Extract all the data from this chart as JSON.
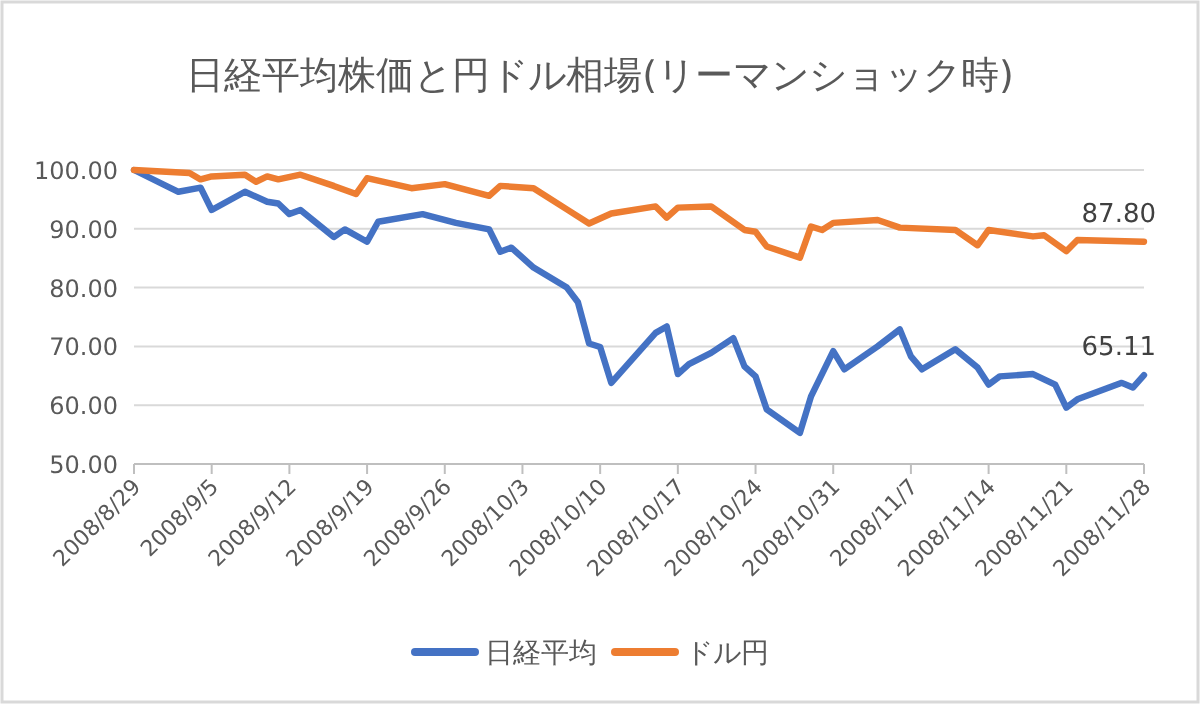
{
  "chart_data": {
    "type": "line",
    "title": "日経平均株価と円ドル相場(リーマンショック時)",
    "xlim": [
      "2008-08-29",
      "2008-11-28"
    ],
    "xticks": [
      {
        "value": "2008-08-29",
        "label": "2008/8/29"
      },
      {
        "value": "2008-09-05",
        "label": "2008/9/5"
      },
      {
        "value": "2008-09-12",
        "label": "2008/9/12"
      },
      {
        "value": "2008-09-19",
        "label": "2008/9/19"
      },
      {
        "value": "2008-09-26",
        "label": "2008/9/26"
      },
      {
        "value": "2008-10-03",
        "label": "2008/10/3"
      },
      {
        "value": "2008-10-10",
        "label": "2008/10/10"
      },
      {
        "value": "2008-10-17",
        "label": "2008/10/17"
      },
      {
        "value": "2008-10-24",
        "label": "2008/10/24"
      },
      {
        "value": "2008-10-31",
        "label": "2008/10/31"
      },
      {
        "value": "2008-11-07",
        "label": "2008/11/7"
      },
      {
        "value": "2008-11-14",
        "label": "2008/11/14"
      },
      {
        "value": "2008-11-21",
        "label": "2008/11/21"
      },
      {
        "value": "2008-11-28",
        "label": "2008/11/28"
      }
    ],
    "ylim": [
      50,
      100
    ],
    "yticks": [
      {
        "value": 50,
        "label": "50.00"
      },
      {
        "value": 60,
        "label": "60.00"
      },
      {
        "value": 70,
        "label": "70.00"
      },
      {
        "value": 80,
        "label": "80.00"
      },
      {
        "value": 90,
        "label": "90.00"
      },
      {
        "value": 100,
        "label": "100.00"
      }
    ],
    "grid": "y",
    "legend": "bottom",
    "series": [
      {
        "name": "日経平均",
        "color": "#4472c4",
        "x": [
          "2008-08-29",
          "2008-09-02",
          "2008-09-04",
          "2008-09-05",
          "2008-09-08",
          "2008-09-10",
          "2008-09-11",
          "2008-09-12",
          "2008-09-13",
          "2008-09-16",
          "2008-09-17",
          "2008-09-19",
          "2008-09-20",
          "2008-09-24",
          "2008-09-27",
          "2008-09-30",
          "2008-10-01",
          "2008-10-02",
          "2008-10-04",
          "2008-10-07",
          "2008-10-08",
          "2008-10-09",
          "2008-10-10",
          "2008-10-11",
          "2008-10-15",
          "2008-10-16",
          "2008-10-17",
          "2008-10-18",
          "2008-10-20",
          "2008-10-22",
          "2008-10-23",
          "2008-10-24",
          "2008-10-25",
          "2008-10-28",
          "2008-10-29",
          "2008-10-31",
          "2008-11-01",
          "2008-11-04",
          "2008-11-06",
          "2008-11-07",
          "2008-11-08",
          "2008-11-11",
          "2008-11-13",
          "2008-11-14",
          "2008-11-15",
          "2008-11-18",
          "2008-11-20",
          "2008-11-21",
          "2008-11-22",
          "2008-11-26",
          "2008-11-27",
          "2008-11-28"
        ],
        "values": [
          100,
          96.3,
          97,
          93.2,
          96.3,
          94.6,
          94.3,
          92.5,
          93.2,
          88.6,
          89.9,
          87.8,
          91.2,
          92.5,
          91,
          89.9,
          86.1,
          86.8,
          83.4,
          80,
          77.5,
          70.5,
          69.9,
          63.8,
          72.3,
          73.4,
          65.3,
          67,
          68.9,
          71.4,
          66.6,
          64.9,
          59.3,
          55.3,
          61.5,
          69.2,
          66.1,
          70,
          72.9,
          68.3,
          66.1,
          69.5,
          66.4,
          63.5,
          64.9,
          65.3,
          63.5,
          59.6,
          61,
          63.8,
          63,
          65.11
        ]
      },
      {
        "name": "ドル円",
        "color": "#ed7d31",
        "x": [
          "2008-08-29",
          "2008-09-03",
          "2008-09-04",
          "2008-09-05",
          "2008-09-08",
          "2008-09-09",
          "2008-09-10",
          "2008-09-11",
          "2008-09-13",
          "2008-09-16",
          "2008-09-18",
          "2008-09-19",
          "2008-09-23",
          "2008-09-26",
          "2008-09-30",
          "2008-10-01",
          "2008-10-04",
          "2008-10-07",
          "2008-10-09",
          "2008-10-11",
          "2008-10-15",
          "2008-10-16",
          "2008-10-17",
          "2008-10-20",
          "2008-10-23",
          "2008-10-24",
          "2008-10-25",
          "2008-10-28",
          "2008-10-29",
          "2008-10-30",
          "2008-10-31",
          "2008-11-04",
          "2008-11-06",
          "2008-11-11",
          "2008-11-13",
          "2008-11-14",
          "2008-11-18",
          "2008-11-19",
          "2008-11-21",
          "2008-11-22",
          "2008-11-28"
        ],
        "values": [
          100,
          99.5,
          98.4,
          98.9,
          99.2,
          98,
          98.9,
          98.4,
          99.2,
          97.3,
          95.9,
          98.6,
          96.9,
          97.6,
          95.6,
          97.3,
          96.9,
          93.3,
          90.9,
          92.6,
          93.8,
          91.9,
          93.6,
          93.8,
          89.8,
          89.5,
          87,
          85.1,
          90.4,
          89.8,
          91,
          91.5,
          90.2,
          89.8,
          87.2,
          89.8,
          88.7,
          88.9,
          86.2,
          88.1,
          87.8
        ]
      }
    ],
    "annotations": [
      {
        "text": "87.80",
        "x": "2008-11-28",
        "y": 87.8
      },
      {
        "text": "65.11",
        "x": "2008-11-28",
        "y": 65.11
      }
    ]
  }
}
